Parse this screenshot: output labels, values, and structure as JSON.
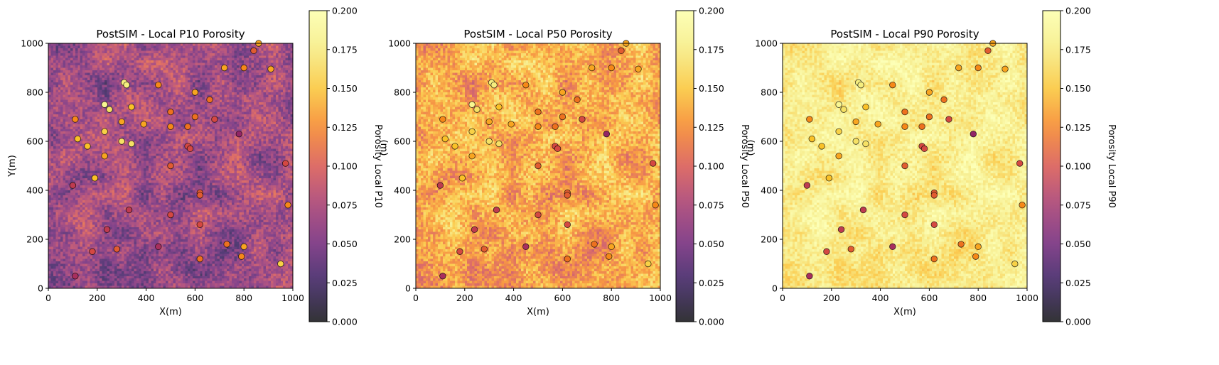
{
  "chart_data": [
    {
      "type": "heatmap",
      "title": "PostSIM - Local P10 Porosity",
      "xlabel": "X(m)",
      "ylabel": "Y(m)",
      "xlim": [
        0,
        1000
      ],
      "ylim": [
        0,
        1000
      ],
      "xticks": [
        "0",
        "200",
        "400",
        "600",
        "800",
        "1000"
      ],
      "yticks": [
        "0",
        "200",
        "400",
        "600",
        "800",
        "1000"
      ],
      "colorbar_label": "Porosity Local P10",
      "colorbar_label_extra": "(m)",
      "colorbar_range": [
        0,
        0.2
      ],
      "colorbar_ticks": [
        "0.000",
        "0.025",
        "0.050",
        "0.075",
        "0.100",
        "0.125",
        "0.150",
        "0.175",
        "0.200"
      ],
      "colormap": "inferno",
      "grid_base": 0.065,
      "grid_amplitude": 0.05,
      "wells_note": "circles colored by well porosity"
    },
    {
      "type": "heatmap",
      "title": "PostSIM - Local P50 Porosity",
      "xlabel": "X(m)",
      "ylabel": "",
      "xlim": [
        0,
        1000
      ],
      "ylim": [
        0,
        1000
      ],
      "xticks": [
        "0",
        "200",
        "400",
        "600",
        "800",
        "1000"
      ],
      "yticks": [
        "0",
        "200",
        "400",
        "600",
        "800",
        "1000"
      ],
      "colorbar_label": "Porosity Local P50",
      "colorbar_label_extra": "(m)",
      "colorbar_range": [
        0,
        0.2
      ],
      "colorbar_ticks": [
        "0.000",
        "0.025",
        "0.050",
        "0.075",
        "0.100",
        "0.125",
        "0.150",
        "0.175",
        "0.200"
      ],
      "colormap": "inferno",
      "grid_base": 0.135,
      "grid_amplitude": 0.05
    },
    {
      "type": "heatmap",
      "title": "PostSIM - Local P90 Porosity",
      "xlabel": "X(m)",
      "ylabel": "",
      "xlim": [
        0,
        1000
      ],
      "ylim": [
        0,
        1000
      ],
      "xticks": [
        "0",
        "200",
        "400",
        "600",
        "800",
        "1000"
      ],
      "yticks": [
        "0",
        "200",
        "400",
        "600",
        "800",
        "1000"
      ],
      "colorbar_label": "Porosity Local P90",
      "colorbar_label_extra": "",
      "colorbar_range": [
        0,
        0.2
      ],
      "colorbar_ticks": [
        "0.000",
        "0.025",
        "0.050",
        "0.075",
        "0.100",
        "0.125",
        "0.150",
        "0.175",
        "0.200"
      ],
      "colormap": "inferno",
      "grid_base": 0.175,
      "grid_amplitude": 0.035
    }
  ],
  "wells": [
    {
      "x": 110,
      "y": 50,
      "porosity": 0.08
    },
    {
      "x": 100,
      "y": 420,
      "porosity": 0.09
    },
    {
      "x": 110,
      "y": 690,
      "porosity": 0.13
    },
    {
      "x": 120,
      "y": 610,
      "porosity": 0.15
    },
    {
      "x": 160,
      "y": 580,
      "porosity": 0.15
    },
    {
      "x": 180,
      "y": 150,
      "porosity": 0.1
    },
    {
      "x": 190,
      "y": 450,
      "porosity": 0.15
    },
    {
      "x": 230,
      "y": 750,
      "porosity": 0.19
    },
    {
      "x": 230,
      "y": 640,
      "porosity": 0.16
    },
    {
      "x": 230,
      "y": 540,
      "porosity": 0.14
    },
    {
      "x": 240,
      "y": 240,
      "porosity": 0.09
    },
    {
      "x": 250,
      "y": 730,
      "porosity": 0.17
    },
    {
      "x": 280,
      "y": 160,
      "porosity": 0.11
    },
    {
      "x": 300,
      "y": 680,
      "porosity": 0.14
    },
    {
      "x": 300,
      "y": 600,
      "porosity": 0.17
    },
    {
      "x": 310,
      "y": 840,
      "porosity": 0.18
    },
    {
      "x": 320,
      "y": 830,
      "porosity": 0.18
    },
    {
      "x": 330,
      "y": 320,
      "porosity": 0.09
    },
    {
      "x": 340,
      "y": 740,
      "porosity": 0.15
    },
    {
      "x": 340,
      "y": 590,
      "porosity": 0.17
    },
    {
      "x": 390,
      "y": 670,
      "porosity": 0.14
    },
    {
      "x": 450,
      "y": 830,
      "porosity": 0.13
    },
    {
      "x": 450,
      "y": 170,
      "porosity": 0.08
    },
    {
      "x": 500,
      "y": 720,
      "porosity": 0.12
    },
    {
      "x": 500,
      "y": 660,
      "porosity": 0.13
    },
    {
      "x": 500,
      "y": 500,
      "porosity": 0.11
    },
    {
      "x": 500,
      "y": 300,
      "porosity": 0.1
    },
    {
      "x": 570,
      "y": 660,
      "porosity": 0.12
    },
    {
      "x": 570,
      "y": 580,
      "porosity": 0.1
    },
    {
      "x": 580,
      "y": 570,
      "porosity": 0.1
    },
    {
      "x": 600,
      "y": 800,
      "porosity": 0.14
    },
    {
      "x": 600,
      "y": 700,
      "porosity": 0.12
    },
    {
      "x": 620,
      "y": 390,
      "porosity": 0.11
    },
    {
      "x": 620,
      "y": 380,
      "porosity": 0.11
    },
    {
      "x": 620,
      "y": 260,
      "porosity": 0.1
    },
    {
      "x": 620,
      "y": 120,
      "porosity": 0.12
    },
    {
      "x": 660,
      "y": 770,
      "porosity": 0.12
    },
    {
      "x": 680,
      "y": 690,
      "porosity": 0.1
    },
    {
      "x": 720,
      "y": 900,
      "porosity": 0.14
    },
    {
      "x": 730,
      "y": 180,
      "porosity": 0.12
    },
    {
      "x": 780,
      "y": 630,
      "porosity": 0.07
    },
    {
      "x": 790,
      "y": 130,
      "porosity": 0.13
    },
    {
      "x": 800,
      "y": 900,
      "porosity": 0.13
    },
    {
      "x": 800,
      "y": 170,
      "porosity": 0.14
    },
    {
      "x": 840,
      "y": 970,
      "porosity": 0.11
    },
    {
      "x": 860,
      "y": 1000,
      "porosity": 0.14
    },
    {
      "x": 910,
      "y": 895,
      "porosity": 0.14
    },
    {
      "x": 950,
      "y": 100,
      "porosity": 0.16
    },
    {
      "x": 970,
      "y": 510,
      "porosity": 0.1
    },
    {
      "x": 980,
      "y": 340,
      "porosity": 0.13
    }
  ]
}
